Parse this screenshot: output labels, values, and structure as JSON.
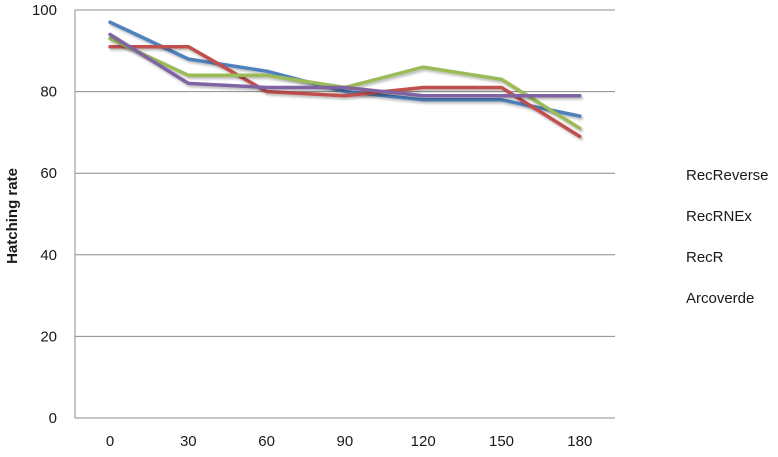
{
  "chart_data": {
    "type": "line",
    "title": "",
    "xlabel": "",
    "ylabel": "Hatching rate",
    "ylim": [
      0,
      100
    ],
    "y_ticks": [
      0,
      20,
      40,
      60,
      80,
      100
    ],
    "grid": "horizontal",
    "legend_position": "right",
    "categories": [
      "0",
      "30",
      "60",
      "90",
      "120",
      "150",
      "180"
    ],
    "series": [
      {
        "name": "RecReverse",
        "color": "#4f81bd",
        "values": [
          97,
          88,
          85,
          80,
          78,
          78,
          74
        ]
      },
      {
        "name": "RecRNEx",
        "color": "#c0504d",
        "values": [
          91,
          91,
          80,
          79,
          81,
          81,
          69
        ]
      },
      {
        "name": "RecR",
        "color": "#9bbb59",
        "values": [
          93,
          84,
          84,
          81,
          86,
          83,
          71
        ]
      },
      {
        "name": "Arcoverde",
        "color": "#8064a2",
        "values": [
          94,
          82,
          81,
          81,
          79,
          79,
          79
        ]
      }
    ]
  }
}
